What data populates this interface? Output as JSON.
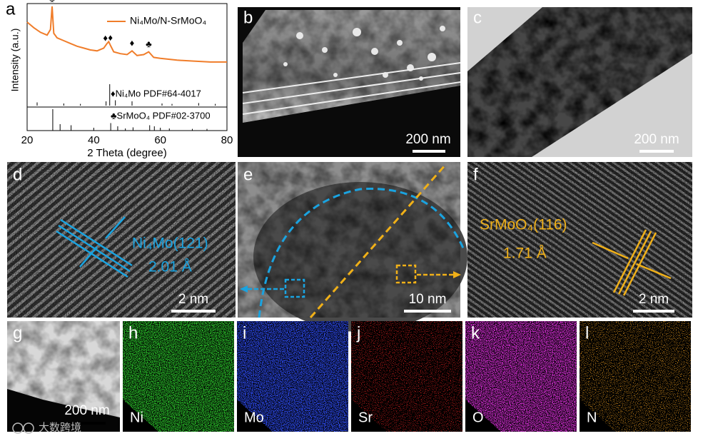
{
  "figure": {
    "panel_labels": [
      "a",
      "b",
      "c",
      "d",
      "e",
      "f",
      "g",
      "h",
      "i",
      "j",
      "k",
      "l"
    ],
    "scale_bars": {
      "b": "200 nm",
      "c": "200 nm",
      "d": "2 nm",
      "e": "10 nm",
      "f": "2 nm",
      "g": "200 nm"
    },
    "annotations": {
      "d_plane": "Ni₄Mo(121)",
      "d_spacing": "2.01 Å",
      "f_plane": "SrMoO₄(116)",
      "f_spacing": "1.71 Å"
    },
    "element_maps": [
      "Ni",
      "Mo",
      "Sr",
      "O",
      "N"
    ],
    "watermark": "大数跨境"
  },
  "chart_data": {
    "type": "line",
    "xlabel": "2 Theta (degree)",
    "ylabel": "Intensity (a.u.)",
    "xlim": [
      20,
      80
    ],
    "xticks": [
      20,
      40,
      60,
      80
    ],
    "ylim": [
      0,
      100
    ],
    "x": [
      20,
      22,
      24,
      26,
      27,
      27.5,
      28,
      29,
      31,
      33,
      35,
      37,
      39,
      41,
      43,
      44,
      44.5,
      45,
      46,
      48,
      50,
      51.5,
      53,
      55,
      56.5,
      58,
      60,
      65,
      70,
      75,
      80
    ],
    "series": [
      {
        "name": "Ni₄Mo/N-SrMoO₄",
        "color": "#f07d2a",
        "values": [
          80,
          74,
          69,
          66,
          72,
          97,
          68,
          63,
          60,
          57,
          54,
          52,
          50,
          49,
          52,
          57,
          59,
          55,
          48,
          46,
          45,
          49,
          44,
          45,
          48,
          42,
          41,
          39,
          38,
          37,
          37
        ]
      }
    ],
    "reference_patterns": [
      {
        "name": "♦Ni₄Mo PDF#64-4017",
        "positions": [
          23,
          31,
          36,
          43.7,
          44.8,
          46.5,
          51.5,
          60.5,
          63.5,
          71.5,
          76.5
        ],
        "intensities": [
          15,
          10,
          8,
          20,
          100,
          25,
          20,
          10,
          8,
          12,
          8
        ]
      },
      {
        "name": "♣SrMoO₄ PDF#02-3700",
        "positions": [
          27.7,
          29.9,
          33.2,
          45.1,
          47.2,
          49.5,
          51.8,
          56.8,
          58.2,
          62.7,
          69.6,
          74
        ],
        "intensities": [
          100,
          30,
          25,
          35,
          20,
          10,
          15,
          25,
          20,
          10,
          8,
          8
        ]
      }
    ],
    "peak_markers": [
      {
        "symbol": "♣",
        "x": 27.5
      },
      {
        "symbol": "♦",
        "x": 43.5
      },
      {
        "symbol": "♦",
        "x": 45
      },
      {
        "symbol": "♦",
        "x": 51.5
      },
      {
        "symbol": "♣",
        "x": 56.5
      }
    ]
  }
}
